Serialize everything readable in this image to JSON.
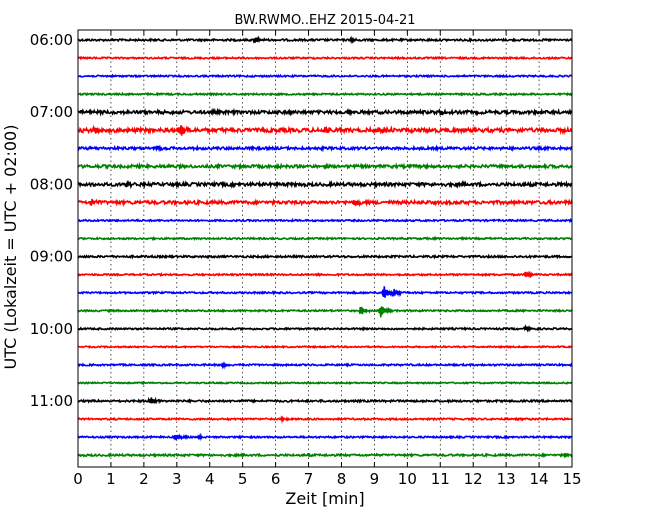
{
  "chart_data": {
    "type": "line",
    "title": "BW.RWMO..EHZ 2015-04-21",
    "xlabel": "Zeit  [min]",
    "ylabel": "UTC (Lokalzeit = UTC + 02:00)",
    "xlim": [
      0,
      15
    ],
    "x_ticks": [
      "0",
      "1",
      "2",
      "3",
      "4",
      "5",
      "6",
      "7",
      "8",
      "9",
      "10",
      "11",
      "12",
      "13",
      "14",
      "15"
    ],
    "y_ticks": [
      "06:00",
      "07:00",
      "08:00",
      "09:00",
      "10:00",
      "11:00"
    ],
    "grid_x": true,
    "trace_interval_min": 15,
    "colors": [
      "#000000",
      "#ff0000",
      "#0000ff",
      "#008000"
    ],
    "traces": [
      {
        "start": "06:00",
        "color": "#000000",
        "noise": 0.6,
        "events": [
          {
            "t": 5.4,
            "amp": 3
          },
          {
            "t": 8.3,
            "amp": 2
          }
        ]
      },
      {
        "start": "06:15",
        "color": "#ff0000",
        "noise": 0.5,
        "events": []
      },
      {
        "start": "06:30",
        "color": "#0000ff",
        "noise": 0.5,
        "events": []
      },
      {
        "start": "06:45",
        "color": "#008000",
        "noise": 0.5,
        "events": []
      },
      {
        "start": "07:00",
        "color": "#000000",
        "noise": 1.0,
        "events": [
          {
            "t": 8.2,
            "amp": 3
          },
          {
            "t": 11.0,
            "amp": 2
          }
        ]
      },
      {
        "start": "07:15",
        "color": "#ff0000",
        "noise": 1.2,
        "events": [
          {
            "t": 0.5,
            "amp": 3
          },
          {
            "t": 3.1,
            "amp": 7
          },
          {
            "t": 7.5,
            "amp": 3
          },
          {
            "t": 9.3,
            "amp": 3
          }
        ]
      },
      {
        "start": "07:30",
        "color": "#0000ff",
        "noise": 0.8,
        "events": [
          {
            "t": 2.4,
            "amp": 3
          }
        ]
      },
      {
        "start": "07:45",
        "color": "#008000",
        "noise": 0.9,
        "events": []
      },
      {
        "start": "08:00",
        "color": "#000000",
        "noise": 1.0,
        "events": [
          {
            "t": 1.5,
            "amp": 2
          }
        ]
      },
      {
        "start": "08:15",
        "color": "#ff0000",
        "noise": 1.0,
        "events": [
          {
            "t": 0.4,
            "amp": 4
          },
          {
            "t": 8.4,
            "amp": 4
          }
        ]
      },
      {
        "start": "08:30",
        "color": "#0000ff",
        "noise": 0.5,
        "events": []
      },
      {
        "start": "08:45",
        "color": "#008000",
        "noise": 0.5,
        "events": []
      },
      {
        "start": "09:00",
        "color": "#000000",
        "noise": 0.6,
        "events": []
      },
      {
        "start": "09:15",
        "color": "#ff0000",
        "noise": 0.5,
        "events": [
          {
            "t": 13.6,
            "amp": 3
          }
        ]
      },
      {
        "start": "09:30",
        "color": "#0000ff",
        "noise": 0.5,
        "events": [
          {
            "t": 9.3,
            "amp": 7
          },
          {
            "t": 9.6,
            "amp": 4
          }
        ]
      },
      {
        "start": "09:45",
        "color": "#008000",
        "noise": 0.5,
        "events": [
          {
            "t": 8.6,
            "amp": 5
          },
          {
            "t": 9.2,
            "amp": 7
          }
        ]
      },
      {
        "start": "10:00",
        "color": "#000000",
        "noise": 0.5,
        "events": [
          {
            "t": 13.6,
            "amp": 2
          }
        ]
      },
      {
        "start": "10:15",
        "color": "#ff0000",
        "noise": 0.4,
        "events": []
      },
      {
        "start": "10:30",
        "color": "#0000ff",
        "noise": 0.5,
        "events": [
          {
            "t": 4.4,
            "amp": 2
          }
        ]
      },
      {
        "start": "10:45",
        "color": "#008000",
        "noise": 0.4,
        "events": []
      },
      {
        "start": "11:00",
        "color": "#000000",
        "noise": 0.6,
        "events": [
          {
            "t": 2.2,
            "amp": 4
          }
        ]
      },
      {
        "start": "11:15",
        "color": "#ff0000",
        "noise": 0.5,
        "events": [
          {
            "t": 6.2,
            "amp": 2
          }
        ]
      },
      {
        "start": "11:30",
        "color": "#0000ff",
        "noise": 0.5,
        "events": [
          {
            "t": 3.0,
            "amp": 3
          },
          {
            "t": 3.7,
            "amp": 2
          }
        ]
      },
      {
        "start": "11:45",
        "color": "#008000",
        "noise": 0.6,
        "events": [
          {
            "t": 14.8,
            "amp": 2
          }
        ]
      }
    ]
  }
}
